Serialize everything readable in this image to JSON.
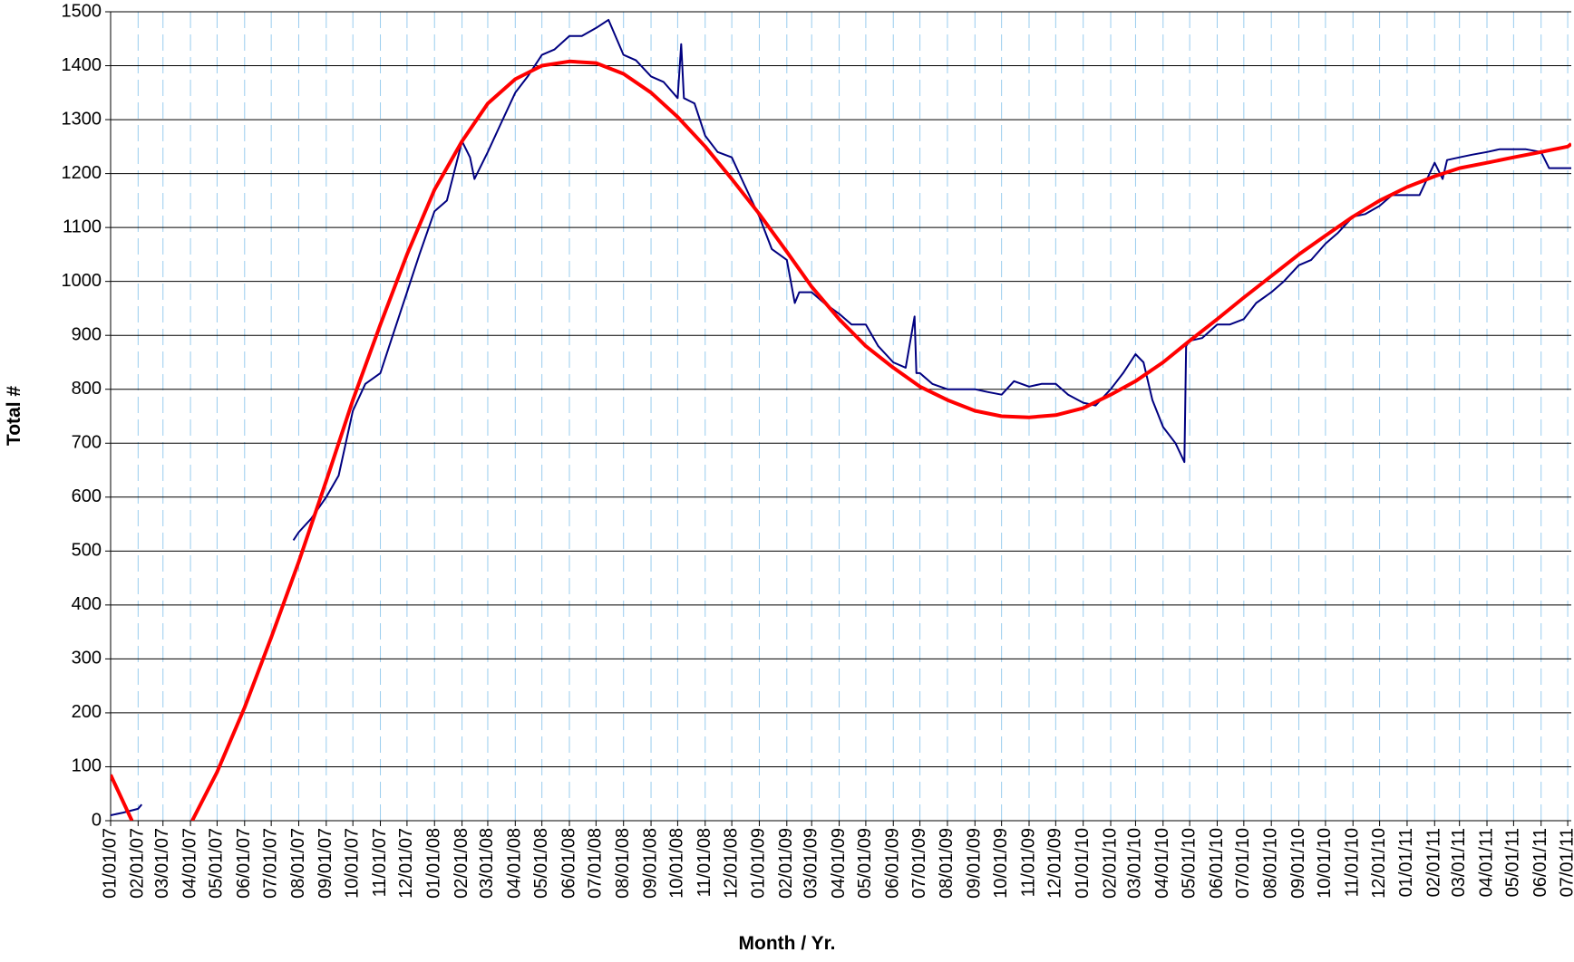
{
  "chart_data": {
    "type": "line",
    "xlabel": "Month / Yr.",
    "ylabel": "Total #",
    "xlim": [
      "01/01/07",
      "07/05/11"
    ],
    "ylim": [
      0,
      1500
    ],
    "yticks": [
      0,
      100,
      200,
      300,
      400,
      500,
      600,
      700,
      800,
      900,
      1000,
      1100,
      1200,
      1300,
      1400,
      1500
    ],
    "xticks": [
      "01/01/07",
      "02/01/07",
      "03/01/07",
      "04/01/07",
      "05/01/07",
      "06/01/07",
      "07/01/07",
      "08/01/07",
      "09/01/07",
      "10/01/07",
      "11/01/07",
      "12/01/07",
      "01/01/08",
      "02/01/08",
      "03/01/08",
      "04/01/08",
      "05/01/08",
      "06/01/08",
      "07/01/08",
      "08/01/08",
      "09/01/08",
      "10/01/08",
      "11/01/08",
      "12/01/08",
      "01/01/09",
      "02/01/09",
      "03/01/09",
      "04/01/09",
      "05/01/09",
      "06/01/09",
      "07/01/09",
      "08/01/09",
      "09/01/09",
      "10/01/09",
      "11/01/09",
      "12/01/09",
      "01/01/10",
      "02/01/10",
      "03/01/10",
      "04/01/10",
      "05/01/10",
      "06/01/10",
      "07/01/10",
      "08/01/10",
      "09/01/10",
      "10/01/10",
      "11/01/10",
      "12/01/10",
      "01/01/11",
      "02/01/11",
      "03/01/11",
      "04/01/11",
      "05/01/11",
      "06/01/11",
      "07/01/11"
    ],
    "grid": true,
    "series": [
      {
        "color": "#000080",
        "width": 2,
        "x": [
          "01/01/07",
          "01/15/07",
          "02/01/07",
          "02/05/07",
          "04/01/07",
          "07/26/07",
          "08/01/07",
          "08/15/07",
          "09/01/07",
          "09/15/07",
          "10/01/07",
          "10/15/07",
          "11/01/07",
          "11/15/07",
          "12/01/07",
          "12/15/07",
          "01/01/08",
          "01/15/08",
          "02/01/08",
          "02/10/08",
          "02/15/08",
          "03/01/08",
          "03/15/08",
          "04/01/08",
          "04/15/08",
          "05/01/08",
          "05/15/08",
          "06/01/08",
          "06/15/08",
          "07/01/08",
          "07/15/08",
          "08/01/08",
          "08/15/08",
          "09/01/08",
          "09/15/08",
          "10/01/08",
          "10/05/08",
          "10/08/08",
          "10/20/08",
          "11/01/08",
          "11/15/08",
          "12/01/08",
          "12/15/08",
          "01/01/09",
          "01/15/09",
          "02/01/09",
          "02/10/09",
          "02/15/09",
          "03/01/09",
          "03/15/09",
          "04/01/09",
          "04/15/09",
          "05/01/09",
          "05/15/09",
          "06/01/09",
          "06/15/09",
          "06/25/09",
          "06/27/09",
          "07/01/09",
          "07/15/09",
          "08/01/09",
          "08/15/09",
          "09/01/09",
          "09/15/09",
          "10/01/09",
          "10/15/09",
          "11/01/09",
          "11/15/09",
          "12/01/09",
          "12/15/09",
          "01/01/10",
          "01/15/10",
          "02/01/10",
          "02/15/10",
          "03/01/10",
          "03/10/10",
          "03/20/10",
          "04/01/10",
          "04/15/10",
          "04/25/10",
          "04/27/10",
          "05/01/10",
          "05/15/10",
          "06/01/10",
          "06/15/10",
          "07/01/10",
          "07/15/10",
          "08/01/10",
          "08/15/10",
          "09/01/10",
          "09/15/10",
          "10/01/10",
          "10/15/10",
          "11/01/10",
          "11/15/10",
          "12/01/10",
          "12/15/10",
          "01/01/11",
          "01/15/11",
          "02/01/11",
          "02/10/11",
          "02/15/11",
          "03/01/11",
          "03/15/11",
          "04/01/11",
          "04/15/11",
          "05/01/11",
          "05/15/11",
          "06/01/11",
          "06/10/11",
          "06/20/11",
          "07/01/11",
          "07/05/11"
        ],
        "values": [
          10,
          15,
          22,
          30,
          null,
          520,
          535,
          560,
          600,
          640,
          760,
          810,
          830,
          900,
          980,
          1050,
          1130,
          1150,
          1260,
          1230,
          1190,
          1240,
          1290,
          1350,
          1380,
          1420,
          1430,
          1455,
          1455,
          1470,
          1485,
          1420,
          1410,
          1380,
          1370,
          1340,
          1440,
          1340,
          1330,
          1270,
          1240,
          1230,
          1180,
          1120,
          1060,
          1040,
          960,
          980,
          980,
          960,
          940,
          920,
          920,
          880,
          850,
          840,
          935,
          830,
          830,
          810,
          800,
          800,
          800,
          795,
          790,
          815,
          805,
          810,
          810,
          790,
          775,
          770,
          800,
          830,
          865,
          850,
          780,
          730,
          700,
          665,
          880,
          890,
          895,
          920,
          920,
          930,
          960,
          980,
          1000,
          1030,
          1040,
          1070,
          1090,
          1120,
          1125,
          1140,
          1160,
          1160,
          1160,
          1220,
          1190,
          1225,
          1230,
          1235,
          1240,
          1245,
          1245,
          1245,
          1240,
          1210,
          1210,
          1210,
          1210
        ]
      },
      {
        "color": "#ff0000",
        "width": 4,
        "x": [
          "01/01/07",
          "01/25/07",
          "03/01/07",
          "04/03/07",
          "05/01/07",
          "06/01/07",
          "07/01/07",
          "08/01/07",
          "09/01/07",
          "10/01/07",
          "11/01/07",
          "12/01/07",
          "01/01/08",
          "02/01/08",
          "03/01/08",
          "04/01/08",
          "05/01/08",
          "06/01/08",
          "07/01/08",
          "08/01/08",
          "09/01/08",
          "10/01/08",
          "11/01/08",
          "12/01/08",
          "01/01/09",
          "02/01/09",
          "03/01/09",
          "04/01/09",
          "05/01/09",
          "06/01/09",
          "07/01/09",
          "08/01/09",
          "09/01/09",
          "10/01/09",
          "11/01/09",
          "12/01/09",
          "01/01/10",
          "02/01/10",
          "03/01/10",
          "04/01/10",
          "05/01/10",
          "06/01/10",
          "07/01/10",
          "08/01/10",
          "09/01/10",
          "10/01/10",
          "11/01/10",
          "12/01/10",
          "01/01/11",
          "02/01/11",
          "03/01/11",
          "04/01/11",
          "05/01/11",
          "06/01/11",
          "07/01/11",
          "07/05/11"
        ],
        "values": [
          85,
          0,
          null,
          0,
          90,
          210,
          340,
          480,
          630,
          780,
          920,
          1050,
          1170,
          1260,
          1330,
          1375,
          1400,
          1408,
          1405,
          1385,
          1350,
          1305,
          1250,
          1190,
          1125,
          1055,
          990,
          930,
          880,
          840,
          805,
          780,
          760,
          750,
          748,
          752,
          765,
          790,
          815,
          850,
          890,
          930,
          970,
          1010,
          1050,
          1085,
          1120,
          1150,
          1175,
          1195,
          1210,
          1220,
          1230,
          1240,
          1250,
          1255
        ]
      }
    ]
  }
}
